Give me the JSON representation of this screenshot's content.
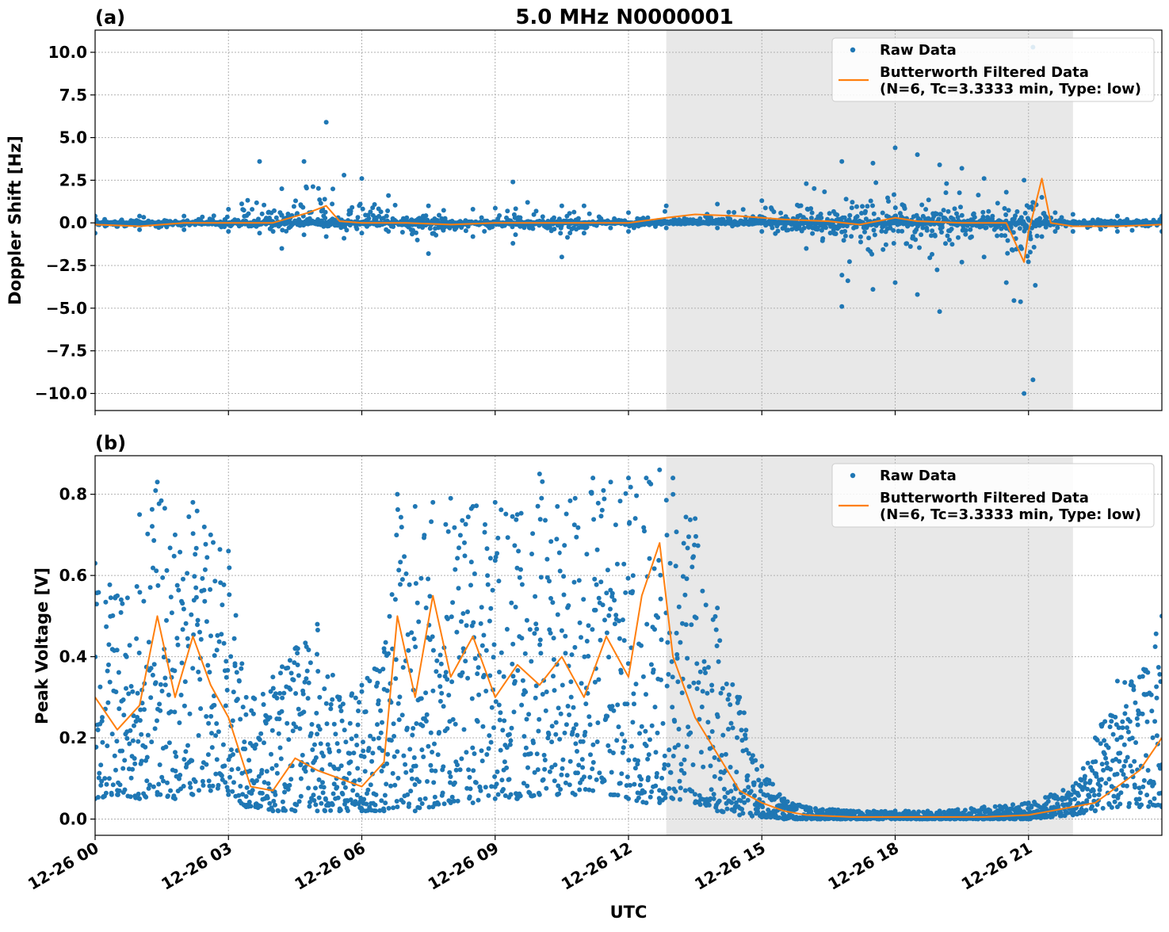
{
  "figure": {
    "title": "5.0 MHz N0000001",
    "xlabel": "UTC",
    "x_ticks": [
      "12-26 00",
      "12-26 03",
      "12-26 06",
      "12-26 09",
      "12-26 12",
      "12-26 15",
      "12-26 18",
      "12-26 21"
    ],
    "legend": {
      "raw_label": "Raw Data",
      "filtered_label_line1": "Butterworth Filtered Data",
      "filtered_label_line2": "(N=6, Tc=3.3333 min, Type: low)"
    },
    "colors": {
      "raw": "#1f77b4",
      "filtered": "#ff7f0e",
      "shade": "#e8e8e8",
      "grid": "#b0b0b0"
    }
  },
  "chart_data": [
    {
      "type": "scatter",
      "panel_label": "(a)",
      "ylabel": "Doppler Shift [Hz]",
      "xlim_hours": [
        0,
        24
      ],
      "ylim": [
        -11,
        11.3
      ],
      "y_ticks": [
        "10.0",
        "7.5",
        "5.0",
        "2.5",
        "0.0",
        "−2.5",
        "−5.0",
        "−7.5",
        "−10.0"
      ],
      "y_tick_values": [
        10,
        7.5,
        5,
        2.5,
        0,
        -2.5,
        -5,
        -7.5,
        -10
      ],
      "shaded_span_hours": [
        12.85,
        22.0
      ],
      "grid": true,
      "legend_position": "top-right",
      "series": [
        {
          "name": "Raw Data",
          "kind": "points",
          "envelope_hours": [
            0,
            1,
            2,
            3,
            3.7,
            4.2,
            4.7,
            5.2,
            5.6,
            6.0,
            6.6,
            7.5,
            8.5,
            9.4,
            10.5,
            11.0,
            12.0,
            12.85,
            14.0,
            15.0,
            16.0,
            16.8,
            17.5,
            18.0,
            18.5,
            19.0,
            19.5,
            20.0,
            20.5,
            20.9,
            21.1,
            21.3,
            21.6,
            22.0,
            23.0,
            24.0
          ],
          "envelope_upper": [
            0.4,
            0.4,
            0.4,
            0.8,
            3.6,
            2.0,
            3.6,
            5.9,
            2.8,
            2.6,
            1.6,
            1.0,
            0.8,
            2.4,
            1.0,
            1.0,
            0.6,
            1.0,
            1.1,
            1.3,
            2.3,
            3.6,
            3.5,
            4.4,
            4.0,
            3.4,
            3.2,
            2.6,
            1.8,
            2.5,
            10.3,
            1.5,
            0.6,
            0.5,
            0.4,
            0.4
          ],
          "envelope_lower": [
            -0.6,
            -0.4,
            -0.4,
            -0.5,
            -0.6,
            -1.5,
            -0.7,
            -0.8,
            -0.9,
            -0.6,
            -0.5,
            -1.8,
            -0.8,
            -1.2,
            -2.0,
            -0.6,
            -0.5,
            -0.3,
            -0.3,
            -0.5,
            -1.5,
            -4.9,
            -3.9,
            -3.5,
            -4.2,
            -5.2,
            -2.3,
            -2.0,
            -3.5,
            -10.0,
            -9.2,
            -0.8,
            -0.5,
            -0.5,
            -0.5,
            -0.5
          ]
        },
        {
          "name": "Butterworth Filtered Data (N=6, Tc=3.3333 min, Type: low)",
          "kind": "line",
          "x_hours": [
            0,
            1,
            2,
            3,
            4,
            4.8,
            5.2,
            5.5,
            6,
            7,
            8,
            9,
            10,
            11,
            12,
            12.85,
            13.5,
            14.5,
            15.5,
            16.5,
            17.2,
            18,
            18.5,
            19.5,
            20.5,
            20.9,
            21.0,
            21.1,
            21.3,
            21.5,
            22,
            23,
            24
          ],
          "y": [
            -0.1,
            -0.2,
            0.0,
            0.0,
            0.0,
            0.6,
            1.0,
            0.1,
            0.0,
            0.0,
            -0.1,
            0.0,
            0.0,
            0.0,
            0.0,
            0.3,
            0.5,
            0.4,
            0.2,
            0.1,
            -0.1,
            0.3,
            0.1,
            0.0,
            0.0,
            -2.3,
            -0.5,
            0.5,
            2.6,
            0.0,
            -0.2,
            -0.2,
            -0.1
          ]
        }
      ]
    },
    {
      "type": "scatter",
      "panel_label": "(b)",
      "ylabel": "Peak Voltage [V]",
      "xlim_hours": [
        0,
        24
      ],
      "ylim": [
        -0.04,
        0.895
      ],
      "y_ticks": [
        "0.8",
        "0.6",
        "0.4",
        "0.2",
        "0.0"
      ],
      "y_tick_values": [
        0.8,
        0.6,
        0.4,
        0.2,
        0.0
      ],
      "shaded_span_hours": [
        12.85,
        22.0
      ],
      "grid": true,
      "legend_position": "top-right",
      "series": [
        {
          "name": "Raw Data",
          "kind": "points",
          "envelope_hours": [
            0,
            0.5,
            1.0,
            1.4,
            1.8,
            2.2,
            2.6,
            3.0,
            3.4,
            4.0,
            4.5,
            5.0,
            5.5,
            6.0,
            6.5,
            6.8,
            7.2,
            7.6,
            8.0,
            8.5,
            9.0,
            9.5,
            10.0,
            10.4,
            10.8,
            11.2,
            11.6,
            12.0,
            12.4,
            12.7,
            13.0,
            13.5,
            14.0,
            14.5,
            15.0,
            15.5,
            16.0,
            17.0,
            18.0,
            19.0,
            20.0,
            21.0,
            21.5,
            22.0,
            22.5,
            23.0,
            23.5,
            24.0
          ],
          "envelope_upper": [
            0.63,
            0.55,
            0.75,
            0.83,
            0.7,
            0.78,
            0.7,
            0.66,
            0.3,
            0.35,
            0.42,
            0.48,
            0.3,
            0.33,
            0.42,
            0.8,
            0.77,
            0.78,
            0.79,
            0.77,
            0.78,
            0.75,
            0.85,
            0.77,
            0.79,
            0.84,
            0.83,
            0.84,
            0.84,
            0.86,
            0.84,
            0.74,
            0.52,
            0.3,
            0.13,
            0.05,
            0.03,
            0.02,
            0.02,
            0.02,
            0.03,
            0.04,
            0.06,
            0.08,
            0.2,
            0.34,
            0.35,
            0.5
          ],
          "envelope_lower": [
            0.05,
            0.06,
            0.05,
            0.06,
            0.05,
            0.06,
            0.07,
            0.06,
            0.03,
            0.02,
            0.02,
            0.02,
            0.02,
            0.02,
            0.02,
            0.03,
            0.02,
            0.03,
            0.04,
            0.04,
            0.05,
            0.05,
            0.06,
            0.06,
            0.06,
            0.07,
            0.06,
            0.05,
            0.04,
            0.04,
            0.05,
            0.04,
            0.02,
            0.01,
            0.005,
            0.0,
            0.0,
            0.0,
            0.0,
            0.0,
            0.0,
            0.0,
            0.005,
            0.01,
            0.02,
            0.03,
            0.03,
            0.03
          ]
        },
        {
          "name": "Butterworth Filtered Data (N=6, Tc=3.3333 min, Type: low)",
          "kind": "line",
          "x_hours": [
            0,
            0.5,
            1.0,
            1.4,
            1.8,
            2.2,
            2.6,
            3.0,
            3.5,
            4.0,
            4.5,
            5.0,
            5.5,
            6.0,
            6.5,
            6.8,
            7.2,
            7.6,
            8.0,
            8.5,
            9.0,
            9.5,
            10.0,
            10.5,
            11.0,
            11.5,
            12.0,
            12.3,
            12.7,
            13.0,
            13.5,
            14.0,
            14.5,
            15.0,
            15.5,
            16.0,
            17.0,
            18.0,
            19.0,
            20.0,
            21.0,
            21.5,
            22.0,
            22.5,
            23.0,
            23.5,
            24.0
          ],
          "y": [
            0.3,
            0.22,
            0.28,
            0.5,
            0.3,
            0.45,
            0.33,
            0.25,
            0.08,
            0.07,
            0.15,
            0.12,
            0.1,
            0.08,
            0.14,
            0.5,
            0.3,
            0.55,
            0.35,
            0.45,
            0.3,
            0.38,
            0.33,
            0.4,
            0.3,
            0.45,
            0.35,
            0.55,
            0.68,
            0.4,
            0.25,
            0.16,
            0.07,
            0.04,
            0.02,
            0.01,
            0.005,
            0.005,
            0.005,
            0.005,
            0.01,
            0.02,
            0.03,
            0.04,
            0.08,
            0.12,
            0.2
          ]
        }
      ]
    }
  ]
}
